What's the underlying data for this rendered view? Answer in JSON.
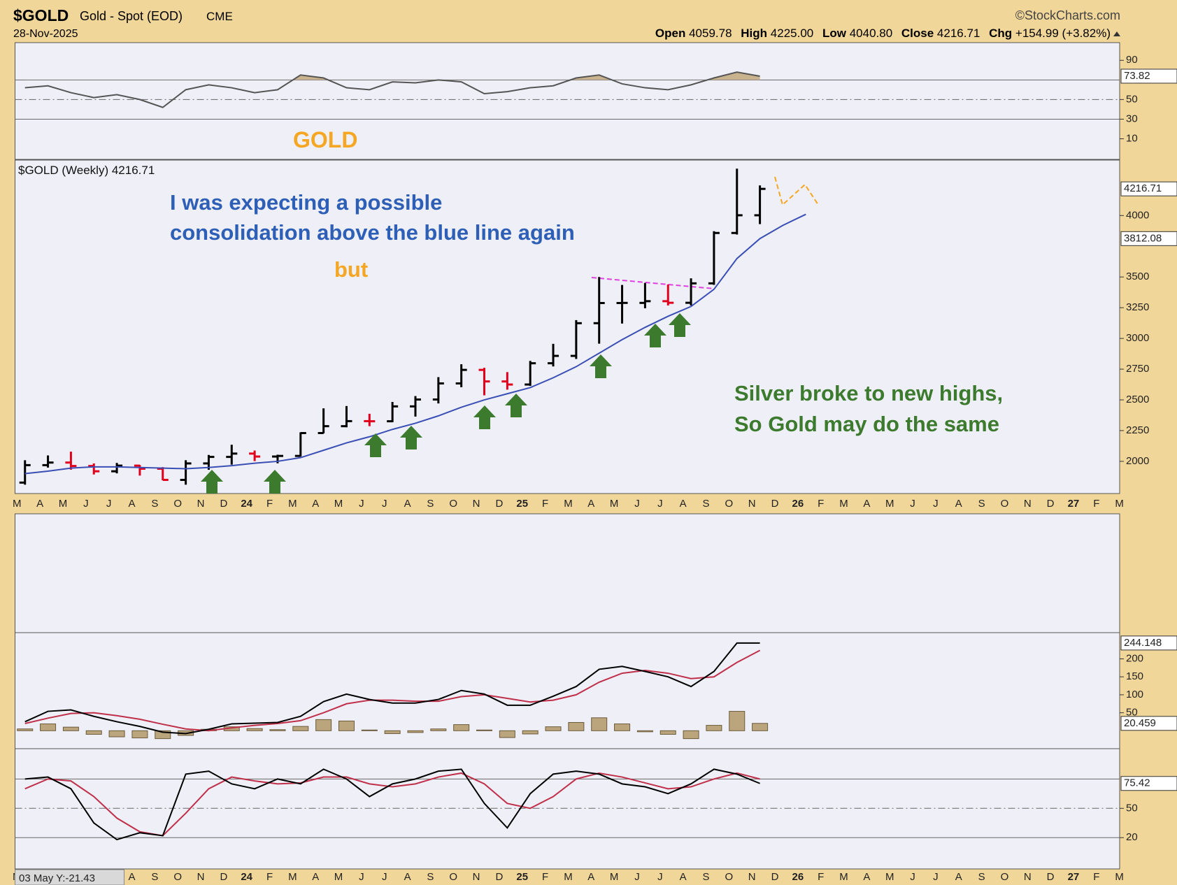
{
  "header": {
    "symbol": "$GOLD",
    "name": "Gold - Spot (EOD)",
    "exchange": "CME",
    "date": "28-Nov-2025",
    "source": "©StockCharts.com",
    "quote": [
      {
        "name": "Open",
        "value": "4059.78"
      },
      {
        "name": "High",
        "value": "4225.00"
      },
      {
        "name": "Low",
        "value": "4040.80"
      },
      {
        "name": "Close",
        "value": "4216.71"
      },
      {
        "name": "Chg",
        "value": "+154.99 (+3.82%)"
      }
    ]
  },
  "annotations": {
    "panel_label": "GOLD",
    "legend": "$GOLD (Weekly) 4216.71",
    "note1": "I was expecting a possible",
    "note2": "consolidation above the blue line again",
    "note3": "but",
    "note4": "Silver broke to new highs,",
    "note5": "So Gold may do the same",
    "cursor": "03 May Y:-21.43"
  },
  "x_axis": {
    "categories": [
      "M",
      "A",
      "M",
      "J",
      "J",
      "A",
      "S",
      "O",
      "N",
      "D",
      "24",
      "F",
      "M",
      "A",
      "M",
      "J",
      "J",
      "A",
      "S",
      "O",
      "N",
      "D",
      "25",
      "F",
      "M",
      "A",
      "M",
      "J",
      "J",
      "A",
      "S",
      "O",
      "N",
      "D",
      "26",
      "F",
      "M",
      "A",
      "M",
      "J",
      "J",
      "A",
      "S",
      "O",
      "N",
      "D",
      "27",
      "F",
      "M"
    ]
  },
  "chart_data": [
    {
      "type": "line",
      "ylim": [
        -11,
        108
      ],
      "yticks": [
        10,
        30,
        50,
        90
      ],
      "reference_lines": [
        {
          "value": 70,
          "style": "solid"
        },
        {
          "value": 50,
          "style": "dashed"
        },
        {
          "value": 30,
          "style": "solid"
        }
      ],
      "series": [
        {
          "color": "#555555",
          "shade_above": 70,
          "shade_color": "#c9b38e",
          "last_label": true,
          "values": [
            62,
            64,
            57,
            52,
            55,
            50,
            42,
            60,
            65,
            62,
            57,
            60,
            75,
            72,
            62,
            60,
            68,
            67,
            70,
            68,
            56,
            58,
            62,
            64,
            72,
            75,
            66,
            62,
            60,
            65,
            72,
            78,
            73.82,
            null,
            null,
            null,
            null,
            null,
            null,
            null,
            null,
            null,
            null,
            null,
            null,
            null,
            null,
            null,
            null
          ]
        }
      ]
    },
    {
      "type": "ohlc",
      "ylim": [
        1738,
        4451
      ],
      "yticks": [
        2000,
        2250,
        2500,
        2750,
        3000,
        3250,
        3500,
        4000
      ],
      "up_color": "#000000",
      "down_color": "#e0001b",
      "last_label": true,
      "open": [
        1827,
        1969,
        1990,
        1962,
        1919,
        1965,
        1940,
        1849,
        1983,
        2036,
        2063,
        2039,
        2044,
        2230,
        2286,
        2327,
        2326,
        2447,
        2503,
        2634,
        2744,
        2650,
        2625,
        2798,
        2858,
        3124,
        3288,
        3289,
        3303,
        3290,
        3448,
        3858,
        4002,
        null,
        null,
        null,
        null,
        null,
        null,
        null,
        null,
        null,
        null,
        null,
        null,
        null,
        null,
        null,
        null
      ],
      "high": [
        2009,
        2048,
        2079,
        1983,
        1987,
        1970,
        1953,
        2009,
        2052,
        2135,
        2088,
        2054,
        2236,
        2431,
        2450,
        2387,
        2483,
        2531,
        2685,
        2790,
        2761,
        2726,
        2817,
        2956,
        3149,
        3500,
        3435,
        3452,
        3439,
        3489,
        3872,
        4381,
        4245,
        null,
        null,
        null,
        null,
        null,
        null,
        null,
        null,
        null,
        null,
        null,
        null,
        null,
        null,
        null,
        null
      ],
      "low": [
        1810,
        1949,
        1932,
        1893,
        1902,
        1884,
        1846,
        1810,
        1931,
        1973,
        2002,
        1984,
        2039,
        2228,
        2277,
        2286,
        2318,
        2364,
        2471,
        2603,
        2537,
        2583,
        2614,
        2772,
        2833,
        2957,
        3121,
        3245,
        3268,
        3268,
        3436,
        3845,
        3930,
        null,
        null,
        null,
        null,
        null,
        null,
        null,
        null,
        null,
        null,
        null,
        null,
        null,
        null,
        null,
        null
      ],
      "close": [
        1969,
        1990,
        1962,
        1919,
        1965,
        1940,
        1849,
        1983,
        2036,
        2063,
        2039,
        2044,
        2230,
        2286,
        2327,
        2326,
        2447,
        2503,
        2634,
        2744,
        2650,
        2625,
        2798,
        2858,
        3124,
        3288,
        3289,
        3303,
        3290,
        3448,
        3858,
        4002,
        4216.71,
        null,
        null,
        null,
        null,
        null,
        null,
        null,
        null,
        null,
        null,
        null,
        null,
        null,
        null,
        null,
        null
      ],
      "series": [
        {
          "color": "#3a4fb5",
          "last_label": true,
          "label_index": 32,
          "values": [
            1900,
            1920,
            1945,
            1955,
            1955,
            1950,
            1945,
            1940,
            1950,
            1965,
            1985,
            2000,
            2030,
            2090,
            2150,
            2200,
            2260,
            2310,
            2370,
            2440,
            2500,
            2550,
            2600,
            2680,
            2770,
            2880,
            2990,
            3090,
            3180,
            3260,
            3400,
            3650,
            3812.08,
            3920,
            4010,
            null,
            null,
            null,
            null,
            null,
            null,
            null,
            null,
            null,
            null,
            null,
            null,
            null,
            null
          ]
        }
      ]
    },
    {
      "type": "line",
      "ylim": [
        -50,
        273
      ],
      "yticks": [
        50,
        100,
        150,
        200
      ],
      "series": [
        {
          "type": "bar",
          "color": "#bba57d",
          "last_label": true,
          "values": [
            5,
            19,
            10,
            -10,
            -17,
            -20,
            -22,
            -13,
            4,
            11,
            6,
            3,
            12,
            31,
            27,
            2,
            -8,
            -5,
            5,
            17,
            2,
            -19,
            -9,
            11,
            23,
            36,
            19,
            -3,
            -10,
            -22,
            15,
            54,
            20.459,
            null,
            null,
            null,
            null,
            null,
            null,
            null,
            null,
            null,
            null,
            null,
            null,
            null,
            null,
            null,
            null
          ]
        },
        {
          "color": "#c0304a",
          "values": [
            20,
            35,
            48,
            50,
            42,
            32,
            18,
            5,
            0,
            8,
            15,
            20,
            28,
            50,
            75,
            85,
            85,
            82,
            82,
            95,
            100,
            90,
            80,
            85,
            100,
            135,
            160,
            168,
            160,
            145,
            150,
            190,
            223.69,
            null,
            null,
            null,
            null,
            null,
            null,
            null,
            null,
            null,
            null,
            null,
            null,
            null,
            null,
            null,
            null
          ]
        },
        {
          "color": "#000000",
          "last_label": true,
          "values": [
            25,
            54,
            58,
            40,
            25,
            12,
            -4,
            -8,
            4,
            19,
            21,
            23,
            40,
            81,
            102,
            87,
            77,
            77,
            87,
            112,
            102,
            71,
            71,
            96,
            123,
            171,
            179,
            165,
            150,
            123,
            165,
            244,
            244.148,
            null,
            null,
            null,
            null,
            null,
            null,
            null,
            null,
            null,
            null,
            null,
            null,
            null,
            null,
            null,
            null
          ]
        }
      ]
    },
    {
      "type": "line",
      "ylim": [
        -12,
        111
      ],
      "yticks": [
        20,
        50
      ],
      "reference_lines": [
        {
          "value": 80,
          "style": "solid"
        },
        {
          "value": 50,
          "style": "dashed"
        },
        {
          "value": 20,
          "style": "solid"
        }
      ],
      "series": [
        {
          "color": "#c0304a",
          "values": [
            70,
            80,
            78,
            62,
            40,
            26,
            22,
            45,
            70,
            82,
            78,
            75,
            76,
            82,
            82,
            75,
            72,
            75,
            82,
            86,
            75,
            55,
            50,
            62,
            80,
            86,
            82,
            76,
            70,
            72,
            80,
            86,
            80,
            null,
            null,
            null,
            null,
            null,
            null,
            null,
            null,
            null,
            null,
            null,
            null,
            null,
            null,
            null,
            null
          ]
        },
        {
          "color": "#000000",
          "last_label": true,
          "values": [
            80,
            82,
            70,
            35,
            18,
            25,
            22,
            85,
            88,
            75,
            70,
            80,
            75,
            90,
            80,
            62,
            75,
            80,
            88,
            90,
            55,
            30,
            65,
            85,
            88,
            85,
            75,
            72,
            65,
            75,
            90,
            85,
            75.42,
            null,
            null,
            null,
            null,
            null,
            null,
            null,
            null,
            null,
            null,
            null,
            null,
            null,
            null,
            null,
            null
          ]
        }
      ]
    }
  ]
}
